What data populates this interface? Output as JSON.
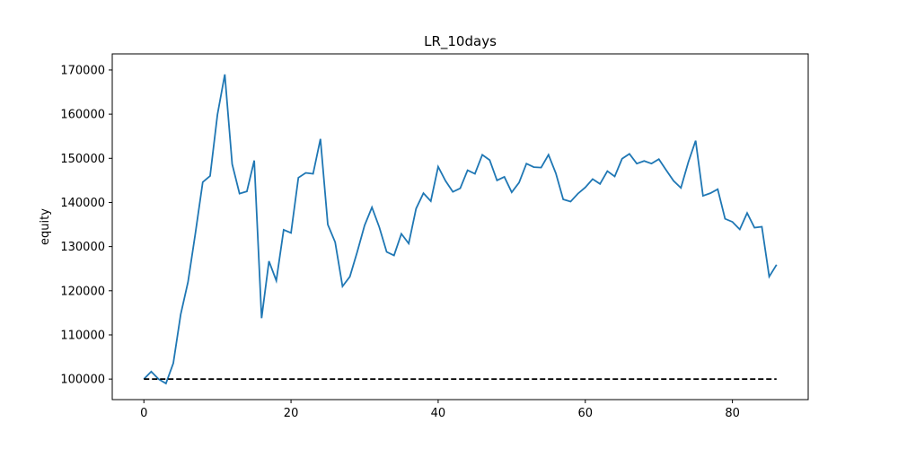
{
  "chart_data": {
    "type": "line",
    "title": "LR_10days",
    "xlabel": "",
    "ylabel": "equity",
    "xlim": [
      -4.3,
      90.3
    ],
    "ylim": [
      95350,
      173650
    ],
    "x_ticks": [
      0,
      20,
      40,
      60,
      80
    ],
    "x_tick_labels": [
      "0",
      "20",
      "40",
      "60",
      "80"
    ],
    "y_ticks": [
      100000,
      110000,
      120000,
      130000,
      140000,
      150000,
      160000,
      170000
    ],
    "y_tick_labels": [
      "100000",
      "110000",
      "120000",
      "130000",
      "140000",
      "150000",
      "160000",
      "170000"
    ],
    "grid": false,
    "legend": "none",
    "series": [
      {
        "style": "solid",
        "color": "#1f77b4",
        "x": [
          0,
          1,
          2,
          3,
          4,
          5,
          6,
          7,
          8,
          9,
          10,
          11,
          12,
          13,
          14,
          15,
          16,
          17,
          18,
          19,
          20,
          21,
          22,
          23,
          24,
          25,
          26,
          27,
          28,
          29,
          30,
          31,
          32,
          33,
          34,
          35,
          36,
          37,
          38,
          39,
          40,
          41,
          42,
          43,
          44,
          45,
          46,
          47,
          48,
          49,
          50,
          51,
          52,
          53,
          54,
          55,
          56,
          57,
          58,
          59,
          60,
          61,
          62,
          63,
          64,
          65,
          66,
          67,
          68,
          69,
          70,
          71,
          72,
          73,
          74,
          75,
          76,
          77,
          78,
          79,
          80,
          81,
          82,
          83,
          84,
          85,
          86
        ],
        "values": [
          100000,
          101700,
          100000,
          99000,
          103600,
          114600,
          122000,
          133000,
          144600,
          146000,
          159900,
          169000,
          148700,
          142000,
          142500,
          149500,
          113800,
          126700,
          122300,
          133800,
          133100,
          145600,
          146700,
          146500,
          154400,
          135000,
          131000,
          121000,
          123200,
          128800,
          134800,
          138900,
          134400,
          128800,
          128000,
          132900,
          130700,
          138600,
          142100,
          140300,
          148100,
          144900,
          142400,
          143200,
          147300,
          146500,
          150800,
          149600,
          145000,
          145800,
          142300,
          144500,
          148800,
          148000,
          147900,
          150800,
          146600,
          140700,
          140200,
          142000,
          143400,
          145300,
          144200,
          147100,
          145900,
          149900,
          151000,
          148800,
          149400,
          148800,
          149800,
          147300,
          144900,
          143300,
          149100,
          154000,
          141500,
          142100,
          143000,
          136300,
          135600,
          133900,
          137600,
          134300,
          134500,
          123200,
          125900
        ]
      },
      {
        "style": "dashed",
        "color": "#000000",
        "x": [
          0,
          86
        ],
        "values": [
          100000,
          100000
        ]
      }
    ]
  }
}
